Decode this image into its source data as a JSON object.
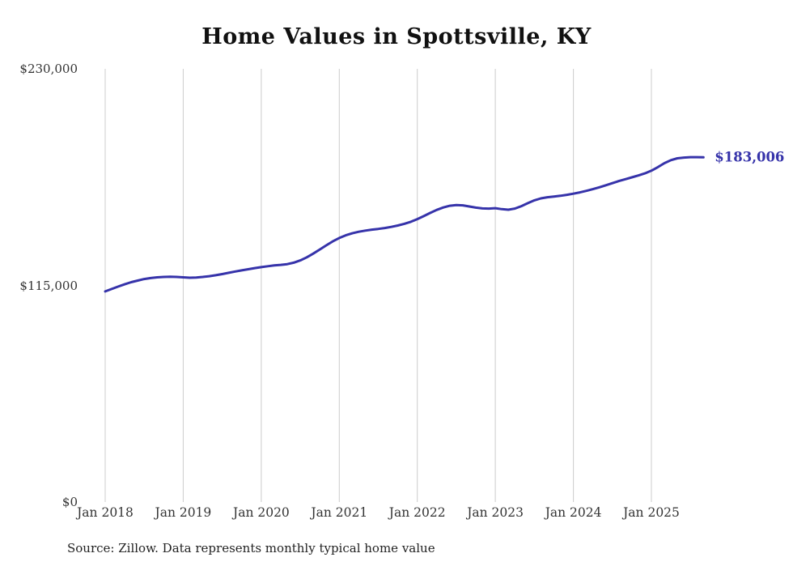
{
  "chart_data": {
    "type": "line",
    "title": "Home Values in Spottsville, KY",
    "source": "Source: Zillow. Data represents monthly typical home value",
    "end_label": "$183,006",
    "line_color": "#3633aa",
    "grid_color": "#cccccc",
    "ylim": [
      0,
      230000
    ],
    "legend": "none",
    "grid": "vertical-only",
    "xlabel": "",
    "ylabel": "",
    "y_ticks": [
      {
        "label": "$230,000",
        "value": 230000
      },
      {
        "label": "$115,000",
        "value": 115000
      },
      {
        "label": "$0",
        "value": 0
      }
    ],
    "x_tick_labels": [
      "Jan 2018",
      "Jan 2019",
      "Jan 2020",
      "Jan 2021",
      "Jan 2022",
      "Jan 2023",
      "Jan 2024",
      "Jan 2025"
    ],
    "x_tick_month_indices": [
      0,
      12,
      24,
      36,
      48,
      60,
      72,
      84
    ],
    "months": [
      "Jan 2018",
      "Feb 2018",
      "Mar 2018",
      "Apr 2018",
      "May 2018",
      "Jun 2018",
      "Jul 2018",
      "Aug 2018",
      "Sep 2018",
      "Oct 2018",
      "Nov 2018",
      "Dec 2018",
      "Jan 2019",
      "Feb 2019",
      "Mar 2019",
      "Apr 2019",
      "May 2019",
      "Jun 2019",
      "Jul 2019",
      "Aug 2019",
      "Sep 2019",
      "Oct 2019",
      "Nov 2019",
      "Dec 2019",
      "Jan 2020",
      "Feb 2020",
      "Mar 2020",
      "Apr 2020",
      "May 2020",
      "Jun 2020",
      "Jul 2020",
      "Aug 2020",
      "Sep 2020",
      "Oct 2020",
      "Nov 2020",
      "Dec 2020",
      "Jan 2021",
      "Feb 2021",
      "Mar 2021",
      "Apr 2021",
      "May 2021",
      "Jun 2021",
      "Jul 2021",
      "Aug 2021",
      "Sep 2021",
      "Oct 2021",
      "Nov 2021",
      "Dec 2021",
      "Jan 2022",
      "Feb 2022",
      "Mar 2022",
      "Apr 2022",
      "May 2022",
      "Jun 2022",
      "Jul 2022",
      "Aug 2022",
      "Sep 2022",
      "Oct 2022",
      "Nov 2022",
      "Dec 2022",
      "Jan 2023",
      "Feb 2023",
      "Mar 2023",
      "Apr 2023",
      "May 2023",
      "Jun 2023",
      "Jul 2023",
      "Aug 2023",
      "Sep 2023",
      "Oct 2023",
      "Nov 2023",
      "Dec 2023",
      "Jan 2024",
      "Feb 2024",
      "Mar 2024",
      "Apr 2024",
      "May 2024",
      "Jun 2024",
      "Jul 2024",
      "Aug 2024",
      "Sep 2024",
      "Oct 2024",
      "Nov 2024",
      "Dec 2024",
      "Jan 2025",
      "Feb 2025",
      "Mar 2025",
      "Apr 2025",
      "May 2025",
      "Jun 2025",
      "Jul 2025",
      "Aug 2025",
      "Sep 2025"
    ],
    "values": [
      111800,
      113100,
      114400,
      115600,
      116700,
      117600,
      118400,
      118900,
      119300,
      119500,
      119600,
      119500,
      119300,
      119100,
      119200,
      119500,
      119900,
      120400,
      121000,
      121700,
      122400,
      123000,
      123600,
      124200,
      124700,
      125200,
      125600,
      125900,
      126300,
      127100,
      128300,
      129900,
      131900,
      134100,
      136300,
      138400,
      140200,
      141600,
      142700,
      143500,
      144100,
      144600,
      145000,
      145500,
      146100,
      146800,
      147700,
      148800,
      150200,
      151800,
      153500,
      155100,
      156400,
      157300,
      157700,
      157500,
      156900,
      156300,
      155900,
      155800,
      156000,
      155500,
      155200,
      155800,
      157100,
      158700,
      160200,
      161200,
      161800,
      162200,
      162600,
      163100,
      163700,
      164400,
      165200,
      166100,
      167100,
      168200,
      169300,
      170400,
      171400,
      172400,
      173400,
      174500,
      175900,
      177800,
      179900,
      181500,
      182500,
      182900,
      183100,
      183100,
      183006
    ]
  }
}
